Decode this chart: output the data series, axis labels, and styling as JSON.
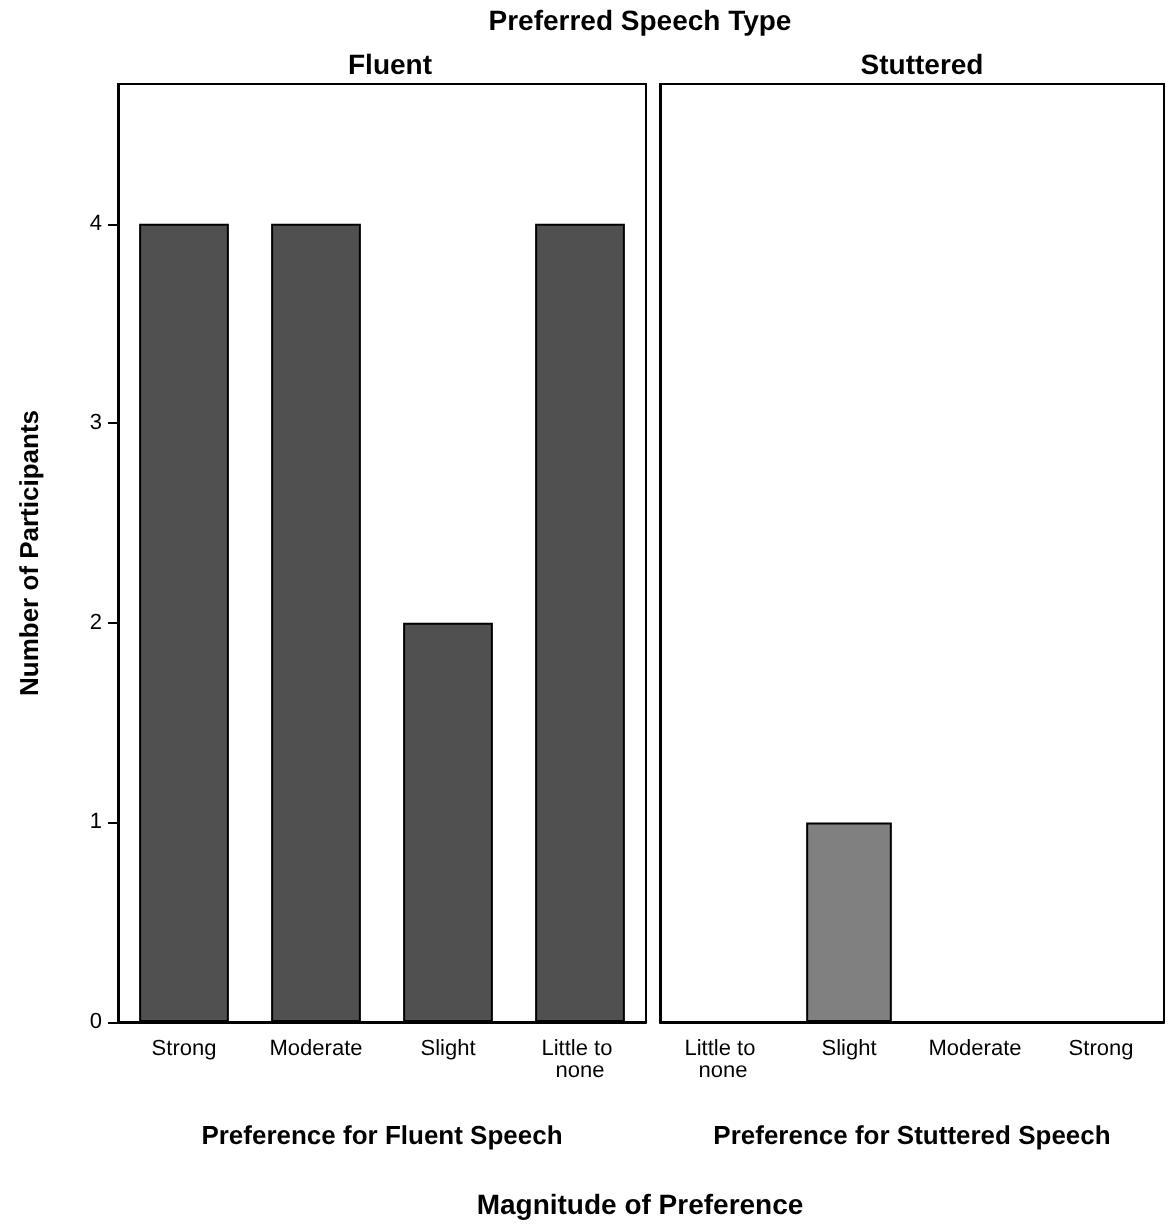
{
  "chart_data": [
    {
      "type": "bar",
      "title": "Fluent",
      "xlabel": "Preference for Fluent Speech",
      "ylabel": "Number of Participants",
      "categories": [
        "Strong",
        "Moderate",
        "Slight",
        "Little to none"
      ],
      "values": [
        4,
        4,
        2,
        4
      ],
      "color": "#505050",
      "ylim": [
        0,
        4.7
      ],
      "yticks": [
        0,
        1,
        2,
        3,
        4
      ],
      "grid": false,
      "annotations": [
        "Preferred Speech Type",
        "Magnitude of Preference"
      ]
    },
    {
      "type": "bar",
      "title": "Stuttered",
      "xlabel": "Preference for Stuttered Speech",
      "categories": [
        "Little to none",
        "Slight",
        "Moderate",
        "Strong"
      ],
      "values": [
        0,
        1,
        0,
        0
      ],
      "color": "#808080",
      "ylim": [
        0,
        4.7
      ],
      "yticks": [
        0,
        1,
        2,
        3,
        4
      ],
      "grid": false,
      "tick_labels": "x"
    }
  ]
}
